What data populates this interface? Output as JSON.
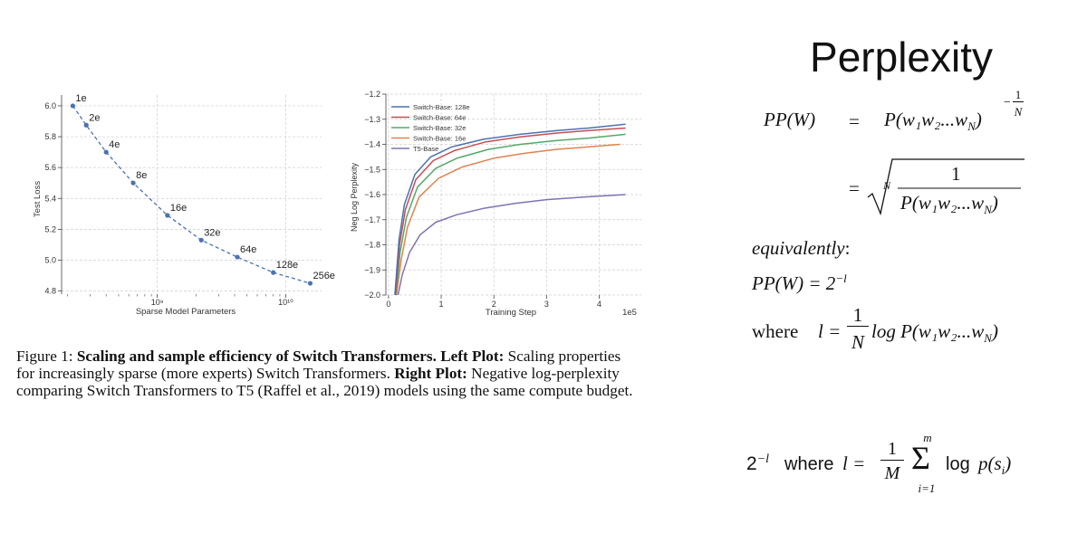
{
  "slide": {
    "title": "Perplexity"
  },
  "caption": {
    "figure_label": "Figure 1:",
    "bold1": "Scaling and sample efficiency of Switch Transformers.",
    "bold2": "Left Plot:",
    "text1": "Scaling properties",
    "line2a": "for increasingly sparse (more experts) Switch Transformers.",
    "bold3": "Right Plot:",
    "text2": "Negative log-perplexity",
    "line3": "comparing Switch Transformers to T5 (Raffel et al., 2019) models using the same compute budget."
  },
  "formulas": {
    "pp_lhs": "PP(W)",
    "eq": "=",
    "prod": "P(w₁w₂...w",
    "sub_N": "N",
    "close_paren": ")",
    "exp_minus": "−",
    "exp_num": "1",
    "exp_den": "N",
    "root_index": "N",
    "frac_num": "1",
    "frac_den": "P(w₁w₂...w",
    "equivalently": "equivalently",
    "colon": ":",
    "pp_two": "PP(W) = 2",
    "pp_two_exp": "−l",
    "where_word": "where",
    "l_eq": "l =",
    "one": "1",
    "N": "N",
    "log_part": "log P(w₁w₂...w",
    "bottom_base": "2",
    "bottom_exp": "−l",
    "bottom_where": "where",
    "bottom_l": "l =",
    "bottom_one": "1",
    "bottom_M": "M",
    "bottom_sum": "Σ",
    "bottom_top": "m",
    "bottom_bottom": "i=1",
    "bottom_log": "log",
    "bottom_p": "p(s",
    "bottom_i": "i",
    "bottom_close": ")"
  },
  "chart_data": [
    {
      "type": "scatter",
      "xlabel": "Sparse Model Parameters",
      "ylabel": "Test Loss",
      "x_scale": "log",
      "x_tick_labels": [
        "10⁹",
        "10¹⁰"
      ],
      "y_ticks": [
        4.8,
        5.0,
        5.2,
        5.4,
        5.6,
        5.8,
        6.0
      ],
      "y_tick_labels": [
        "4.8",
        "5.0",
        "5.2",
        "5.4",
        "5.6",
        "5.8",
        "6.0"
      ],
      "ylim": [
        4.78,
        6.07
      ],
      "grid": true,
      "series_color": "#4c72b0",
      "points": [
        {
          "label": "1e",
          "x": 220000000.0,
          "y": 6.0
        },
        {
          "label": "2e",
          "x": 280000000.0,
          "y": 5.875
        },
        {
          "label": "4e",
          "x": 400000000.0,
          "y": 5.7
        },
        {
          "label": "8e",
          "x": 650000000.0,
          "y": 5.5
        },
        {
          "label": "16e",
          "x": 1200000000.0,
          "y": 5.29
        },
        {
          "label": "32e",
          "x": 2200000000.0,
          "y": 5.13
        },
        {
          "label": "64e",
          "x": 4200000000.0,
          "y": 5.02
        },
        {
          "label": "128e",
          "x": 8000000000.0,
          "y": 4.92
        },
        {
          "label": "256e",
          "x": 15500000000.0,
          "y": 4.85
        }
      ]
    },
    {
      "type": "line",
      "xlabel": "Training Step",
      "ylabel": "Neg Log Perplexity",
      "x_multiplier": "1e5",
      "x_ticks": [
        0,
        1,
        2,
        3,
        4
      ],
      "x_tick_labels": [
        "0",
        "1",
        "2",
        "3",
        "4"
      ],
      "xlim": [
        -0.05,
        4.8
      ],
      "y_ticks": [
        -2.0,
        -1.9,
        -1.8,
        -1.7,
        -1.6,
        -1.5,
        -1.4,
        -1.3,
        -1.2
      ],
      "y_tick_labels": [
        "−2.0",
        "−1.9",
        "−1.8",
        "−1.7",
        "−1.6",
        "−1.5",
        "−1.4",
        "−1.3",
        "−1.2"
      ],
      "ylim": [
        -2.0,
        -1.2
      ],
      "grid": true,
      "legend_position": "top-left",
      "series": [
        {
          "name": "Switch-Base: 128e",
          "color": "#4c72b0",
          "x": [
            0.12,
            0.2,
            0.3,
            0.5,
            0.8,
            1.2,
            1.8,
            2.5,
            3.2,
            3.8,
            4.5
          ],
          "y": [
            -2.0,
            -1.78,
            -1.64,
            -1.52,
            -1.45,
            -1.41,
            -1.38,
            -1.36,
            -1.345,
            -1.335,
            -1.32
          ]
        },
        {
          "name": "Switch-Base: 64e",
          "color": "#c44e52",
          "x": [
            0.13,
            0.21,
            0.32,
            0.52,
            0.85,
            1.25,
            1.85,
            2.5,
            3.2,
            3.8,
            4.5
          ],
          "y": [
            -2.0,
            -1.8,
            -1.66,
            -1.54,
            -1.465,
            -1.425,
            -1.39,
            -1.37,
            -1.355,
            -1.345,
            -1.335
          ]
        },
        {
          "name": "Switch-Base: 32e",
          "color": "#55a868",
          "x": [
            0.14,
            0.22,
            0.34,
            0.55,
            0.9,
            1.3,
            1.9,
            2.5,
            3.2,
            3.8,
            4.5
          ],
          "y": [
            -2.0,
            -1.83,
            -1.69,
            -1.57,
            -1.495,
            -1.455,
            -1.42,
            -1.4,
            -1.385,
            -1.375,
            -1.36
          ]
        },
        {
          "name": "Switch-Base: 16e",
          "color": "#dd8452",
          "x": [
            0.15,
            0.24,
            0.36,
            0.58,
            0.95,
            1.4,
            2.0,
            2.6,
            3.2,
            3.8,
            4.4
          ],
          "y": [
            -2.0,
            -1.86,
            -1.73,
            -1.61,
            -1.535,
            -1.49,
            -1.455,
            -1.435,
            -1.42,
            -1.41,
            -1.4
          ]
        },
        {
          "name": "T5-Base",
          "color": "#8172b2",
          "x": [
            0.18,
            0.26,
            0.4,
            0.6,
            0.9,
            1.3,
            1.8,
            2.4,
            3.0,
            3.7,
            4.5
          ],
          "y": [
            -2.0,
            -1.92,
            -1.83,
            -1.76,
            -1.71,
            -1.68,
            -1.655,
            -1.635,
            -1.62,
            -1.61,
            -1.6
          ]
        }
      ]
    }
  ]
}
